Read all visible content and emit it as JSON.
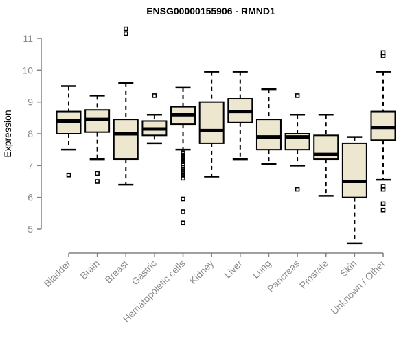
{
  "title": "ENSG00000155906 - RMND1",
  "colors": {
    "background": "#FFFFFF",
    "box_fill": "#EDE7D0",
    "box_stroke": "#000000",
    "median": "#000000",
    "whisker": "#000000",
    "outlier_stroke": "#000000",
    "axis": "#808080",
    "tick_label": "#8A8A8A",
    "title_color": "#000000"
  },
  "chart_data": {
    "type": "boxplot",
    "title": "ENSG00000155906 - RMND1",
    "xlabel": "",
    "ylabel": "Expression",
    "ylim": [
      4.4,
      11.5
    ],
    "y_ticks": [
      5,
      6,
      7,
      8,
      9,
      10,
      11
    ],
    "grid": "off",
    "legend": "none",
    "categories": [
      "Bladder",
      "Brain",
      "Breast",
      "Gastric",
      "Hematopoietic cells",
      "Kidney",
      "Liver",
      "Lung",
      "Pancreas",
      "Prostate",
      "Skin",
      "Unknown / Other"
    ],
    "series": [
      {
        "name": "Bladder",
        "whisker_low": 7.5,
        "q1": 8.0,
        "median": 8.4,
        "q3": 8.7,
        "whisker_high": 9.5,
        "outliers": [
          6.7
        ]
      },
      {
        "name": "Brain",
        "whisker_low": 7.2,
        "q1": 8.05,
        "median": 8.45,
        "q3": 8.75,
        "whisker_high": 9.2,
        "outliers": [
          6.75,
          6.5
        ]
      },
      {
        "name": "Breast",
        "whisker_low": 6.4,
        "q1": 7.2,
        "median": 8.0,
        "q3": 8.45,
        "whisker_high": 9.6,
        "outliers": [
          11.3,
          11.15
        ]
      },
      {
        "name": "Gastric",
        "whisker_low": 7.7,
        "q1": 7.95,
        "median": 8.15,
        "q3": 8.4,
        "whisker_high": 8.6,
        "outliers": [
          9.2
        ]
      },
      {
        "name": "Hematopoietic cells",
        "whisker_low": 7.5,
        "q1": 8.3,
        "median": 8.6,
        "q3": 8.85,
        "whisker_high": 9.45,
        "outliers": [
          7.4,
          7.33,
          7.26,
          7.19,
          7.12,
          7.05,
          6.95,
          6.88,
          6.81,
          6.74,
          6.67,
          6.6,
          5.95,
          5.55,
          5.2
        ]
      },
      {
        "name": "Kidney",
        "whisker_low": 6.65,
        "q1": 7.7,
        "median": 8.1,
        "q3": 9.0,
        "whisker_high": 9.95,
        "outliers": []
      },
      {
        "name": "Liver",
        "whisker_low": 7.2,
        "q1": 8.35,
        "median": 8.7,
        "q3": 9.1,
        "whisker_high": 9.95,
        "outliers": []
      },
      {
        "name": "Lung",
        "whisker_low": 7.05,
        "q1": 7.5,
        "median": 7.9,
        "q3": 8.45,
        "whisker_high": 9.4,
        "outliers": []
      },
      {
        "name": "Pancreas",
        "whisker_low": 7.0,
        "q1": 7.5,
        "median": 7.9,
        "q3": 8.0,
        "whisker_high": 8.6,
        "outliers": [
          9.2,
          6.25
        ]
      },
      {
        "name": "Prostate",
        "whisker_low": 6.05,
        "q1": 7.2,
        "median": 7.35,
        "q3": 7.95,
        "whisker_high": 8.6,
        "outliers": []
      },
      {
        "name": "Skin",
        "whisker_low": 4.55,
        "q1": 6.0,
        "median": 6.5,
        "q3": 7.7,
        "whisker_high": 7.9,
        "outliers": []
      },
      {
        "name": "Unknown / Other",
        "whisker_low": 6.55,
        "q1": 7.8,
        "median": 8.2,
        "q3": 8.7,
        "whisker_high": 9.95,
        "outliers": [
          10.55,
          10.45,
          6.35,
          6.25,
          5.8,
          5.6
        ]
      }
    ]
  }
}
